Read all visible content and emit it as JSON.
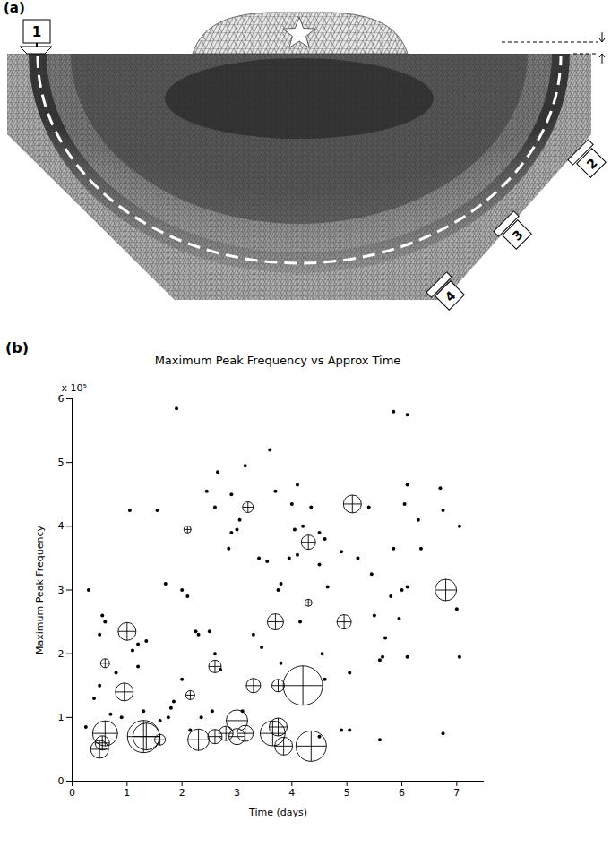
{
  "diagram": {
    "panel_label": "(a)",
    "sensors": [
      "1",
      "2",
      "3",
      "4"
    ]
  },
  "chart_data": {
    "type": "scatter",
    "panel_label": "(b)",
    "title": "Maximum Peak Frequency vs Approx Time",
    "x_label": "Time (days)",
    "y_label": "Maximum Peak Frequency",
    "annotations": [
      "x 10⁵"
    ],
    "xlim": [
      0,
      7.5
    ],
    "xticks": [
      0,
      1,
      2,
      3,
      4,
      5,
      6,
      7
    ],
    "ylim": [
      0,
      6
    ],
    "yticks": [
      0,
      1,
      2,
      3,
      4,
      5,
      6
    ],
    "grid": false,
    "series": [
      {
        "marker": "circle-plus",
        "color": "#000000",
        "x": [
          0.5,
          0.55,
          0.6,
          0.6,
          0.95,
          1.0,
          1.3,
          1.35,
          1.6,
          2.1,
          2.15,
          2.3,
          2.6,
          2.6,
          2.8,
          3.0,
          3.0,
          3.15,
          3.2,
          3.3,
          3.65,
          3.7,
          3.75,
          3.75,
          3.85,
          4.2,
          4.3,
          4.3,
          4.35,
          4.95,
          5.1,
          6.8
        ],
        "values": [
          0.5,
          0.6,
          0.75,
          1.85,
          1.4,
          2.35,
          0.7,
          0.7,
          0.65,
          3.95,
          1.35,
          0.65,
          1.8,
          0.7,
          0.75,
          0.95,
          0.7,
          0.75,
          4.3,
          1.5,
          0.75,
          2.5,
          0.85,
          1.5,
          0.55,
          1.5,
          3.75,
          2.8,
          0.55,
          2.5,
          4.35,
          3.0
        ],
        "sizes": [
          10,
          8,
          14,
          5,
          10,
          10,
          18,
          15,
          6,
          4,
          5,
          12,
          7,
          8,
          8,
          12,
          9,
          9,
          6,
          8,
          14,
          9,
          10,
          7,
          10,
          22,
          8,
          4,
          17,
          8,
          10,
          12
        ]
      },
      {
        "marker": "dot",
        "color": "#000000",
        "x": [
          0.3,
          0.25,
          0.4,
          0.5,
          0.55,
          0.6,
          0.5,
          0.7,
          0.8,
          0.9,
          1.05,
          1.1,
          1.2,
          1.2,
          1.3,
          1.35,
          1.55,
          1.6,
          1.7,
          1.75,
          1.8,
          1.85,
          1.9,
          2.0,
          2.0,
          2.1,
          2.15,
          2.25,
          2.3,
          2.35,
          2.45,
          2.5,
          2.55,
          2.6,
          2.65,
          2.6,
          2.7,
          2.85,
          2.9,
          2.9,
          3.0,
          3.05,
          3.1,
          3.15,
          3.3,
          3.4,
          3.45,
          3.55,
          3.6,
          3.7,
          3.75,
          3.8,
          3.8,
          3.95,
          4.0,
          4.05,
          4.1,
          4.1,
          4.2,
          4.15,
          4.35,
          4.5,
          4.5,
          4.5,
          4.55,
          4.6,
          4.65,
          4.6,
          4.9,
          4.9,
          5.05,
          5.05,
          5.2,
          5.4,
          5.45,
          5.5,
          5.6,
          5.6,
          5.65,
          5.7,
          5.8,
          5.85,
          5.85,
          5.95,
          6.0,
          6.05,
          6.1,
          6.1,
          6.1,
          6.1,
          6.3,
          6.35,
          6.7,
          6.75,
          6.75,
          7.0,
          7.05,
          7.05
        ],
        "values": [
          3.0,
          0.85,
          1.3,
          2.3,
          2.6,
          2.5,
          1.5,
          1.05,
          1.7,
          1.0,
          4.25,
          2.05,
          2.15,
          1.8,
          1.1,
          2.2,
          4.25,
          0.95,
          3.1,
          1.0,
          1.15,
          1.25,
          5.85,
          1.6,
          3.0,
          2.9,
          0.8,
          2.35,
          2.3,
          1.0,
          4.55,
          2.35,
          1.1,
          4.3,
          4.85,
          2.0,
          1.75,
          3.65,
          3.9,
          4.5,
          3.95,
          4.1,
          1.1,
          4.95,
          2.3,
          3.5,
          2.1,
          3.45,
          5.2,
          4.55,
          3.0,
          3.1,
          1.85,
          3.5,
          4.35,
          3.95,
          3.55,
          4.65,
          4.0,
          2.5,
          4.3,
          0.7,
          3.4,
          3.9,
          2.0,
          1.6,
          3.05,
          3.8,
          0.8,
          3.6,
          1.7,
          0.8,
          3.5,
          4.3,
          3.25,
          2.6,
          0.65,
          1.9,
          1.95,
          2.25,
          2.9,
          3.65,
          5.8,
          2.55,
          3.0,
          4.35,
          4.65,
          5.75,
          3.05,
          1.95,
          4.1,
          3.65,
          4.6,
          0.75,
          4.25,
          2.7,
          4.0,
          1.95
        ],
        "sizes": [
          2,
          2,
          2,
          2,
          2,
          2,
          2,
          2,
          2,
          2,
          2,
          2,
          2,
          2,
          2,
          2,
          2,
          2,
          2,
          2,
          2,
          2,
          2,
          2,
          2,
          2,
          2,
          2,
          2,
          2,
          2,
          2,
          2,
          2,
          2,
          2,
          2,
          2,
          2,
          2,
          2,
          2,
          2,
          2,
          2,
          2,
          2,
          2,
          2,
          2,
          2,
          2,
          2,
          2,
          2,
          2,
          2,
          2,
          2,
          2,
          2,
          2,
          2,
          2,
          2,
          2,
          2,
          2,
          2,
          2,
          2,
          2,
          2,
          2,
          2,
          2,
          2,
          2,
          2,
          2,
          2,
          2,
          2,
          2,
          2,
          2,
          2,
          2,
          2,
          2,
          2,
          2,
          2,
          2,
          2,
          2,
          2,
          2
        ]
      }
    ]
  }
}
